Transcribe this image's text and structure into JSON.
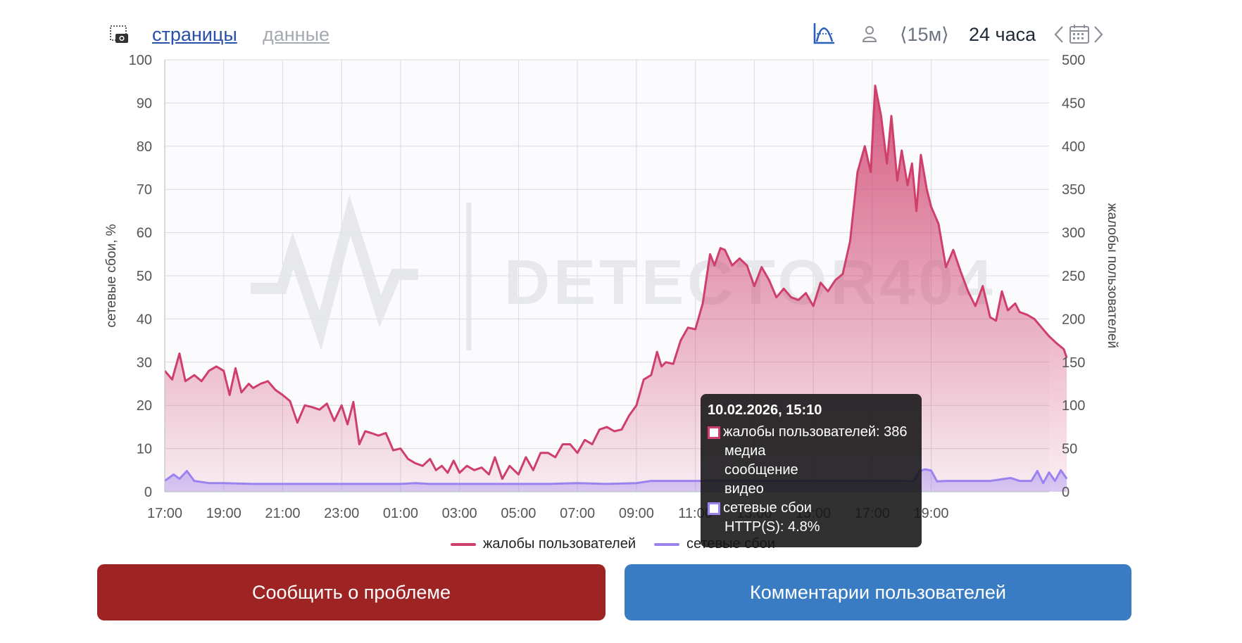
{
  "toolbar": {
    "tab_pages": "страницы",
    "tab_data": "данные",
    "interval_label": "⟨15м⟩",
    "range_label": "24 часа"
  },
  "chart_data": {
    "type": "area",
    "x_labels": [
      "17:00",
      "19:00",
      "21:00",
      "23:00",
      "01:00",
      "03:00",
      "05:00",
      "07:00",
      "09:00",
      "11:00",
      "13:00",
      "15:00",
      "17:00",
      "19:00"
    ],
    "y_left": {
      "label": "сетевые сбои, %",
      "range": [
        0,
        100
      ],
      "ticks": [
        0,
        10,
        20,
        30,
        40,
        50,
        60,
        70,
        80,
        90,
        100
      ]
    },
    "y_right": {
      "label": "жалобы пользователей",
      "range": [
        0,
        500
      ],
      "ticks": [
        0,
        50,
        100,
        150,
        200,
        250,
        300,
        350,
        400,
        450,
        500
      ]
    },
    "watermark": "DETECTOR404",
    "series": [
      {
        "name": "жалобы пользователей",
        "axis": "right",
        "color": "#cf3f6c",
        "points": [
          [
            17.0,
            140
          ],
          [
            17.25,
            130
          ],
          [
            17.5,
            160
          ],
          [
            17.7,
            128
          ],
          [
            18.0,
            135
          ],
          [
            18.25,
            128
          ],
          [
            18.5,
            140
          ],
          [
            18.75,
            145
          ],
          [
            19.0,
            140
          ],
          [
            19.2,
            112
          ],
          [
            19.4,
            143
          ],
          [
            19.6,
            115
          ],
          [
            19.85,
            125
          ],
          [
            20.0,
            120
          ],
          [
            20.25,
            125
          ],
          [
            20.5,
            128
          ],
          [
            20.75,
            118
          ],
          [
            21.0,
            112
          ],
          [
            21.25,
            105
          ],
          [
            21.5,
            80
          ],
          [
            21.75,
            100
          ],
          [
            22.0,
            98
          ],
          [
            22.25,
            95
          ],
          [
            22.5,
            102
          ],
          [
            22.75,
            82
          ],
          [
            23.0,
            100
          ],
          [
            23.2,
            78
          ],
          [
            23.4,
            104
          ],
          [
            23.6,
            55
          ],
          [
            23.8,
            70
          ],
          [
            24.0,
            68
          ],
          [
            24.25,
            65
          ],
          [
            24.5,
            68
          ],
          [
            24.75,
            48
          ],
          [
            25.0,
            50
          ],
          [
            25.25,
            38
          ],
          [
            25.5,
            33
          ],
          [
            25.75,
            30
          ],
          [
            26.0,
            38
          ],
          [
            26.2,
            25
          ],
          [
            26.4,
            30
          ],
          [
            26.6,
            22
          ],
          [
            26.8,
            36
          ],
          [
            27.0,
            22
          ],
          [
            27.25,
            30
          ],
          [
            27.5,
            25
          ],
          [
            27.75,
            28
          ],
          [
            28.0,
            20
          ],
          [
            28.2,
            40
          ],
          [
            28.45,
            15
          ],
          [
            28.7,
            30
          ],
          [
            29.0,
            20
          ],
          [
            29.25,
            40
          ],
          [
            29.5,
            25
          ],
          [
            29.75,
            45
          ],
          [
            30.0,
            45
          ],
          [
            30.25,
            40
          ],
          [
            30.5,
            55
          ],
          [
            30.75,
            55
          ],
          [
            31.0,
            45
          ],
          [
            31.25,
            60
          ],
          [
            31.5,
            55
          ],
          [
            31.75,
            72
          ],
          [
            32.0,
            75
          ],
          [
            32.25,
            70
          ],
          [
            32.5,
            72
          ],
          [
            32.75,
            88
          ],
          [
            33.0,
            100
          ],
          [
            33.25,
            130
          ],
          [
            33.5,
            135
          ],
          [
            33.7,
            162
          ],
          [
            33.85,
            145
          ],
          [
            34.0,
            150
          ],
          [
            34.25,
            148
          ],
          [
            34.5,
            175
          ],
          [
            34.75,
            190
          ],
          [
            35.0,
            188
          ],
          [
            35.25,
            218
          ],
          [
            35.5,
            275
          ],
          [
            35.65,
            262
          ],
          [
            35.85,
            282
          ],
          [
            36.0,
            280
          ],
          [
            36.25,
            262
          ],
          [
            36.5,
            270
          ],
          [
            36.75,
            262
          ],
          [
            37.0,
            238
          ],
          [
            37.25,
            260
          ],
          [
            37.5,
            245
          ],
          [
            37.75,
            225
          ],
          [
            38.0,
            235
          ],
          [
            38.25,
            225
          ],
          [
            38.5,
            222
          ],
          [
            38.75,
            230
          ],
          [
            39.0,
            215
          ],
          [
            39.25,
            242
          ],
          [
            39.5,
            232
          ],
          [
            39.75,
            245
          ],
          [
            40.0,
            252
          ],
          [
            40.25,
            290
          ],
          [
            40.5,
            370
          ],
          [
            40.75,
            400
          ],
          [
            40.95,
            370
          ],
          [
            41.1,
            470
          ],
          [
            41.3,
            435
          ],
          [
            41.5,
            380
          ],
          [
            41.65,
            435
          ],
          [
            41.85,
            360
          ],
          [
            42.0,
            395
          ],
          [
            42.2,
            355
          ],
          [
            42.35,
            380
          ],
          [
            42.5,
            325
          ],
          [
            42.65,
            390
          ],
          [
            42.85,
            350
          ],
          [
            43.0,
            330
          ],
          [
            43.25,
            310
          ],
          [
            43.5,
            260
          ],
          [
            43.75,
            280
          ],
          [
            44.0,
            255
          ],
          [
            44.25,
            232
          ],
          [
            44.5,
            215
          ],
          [
            44.75,
            238
          ],
          [
            45.0,
            202
          ],
          [
            45.2,
            198
          ],
          [
            45.4,
            232
          ],
          [
            45.6,
            210
          ],
          [
            45.85,
            218
          ],
          [
            46.0,
            208
          ],
          [
            46.25,
            205
          ],
          [
            46.5,
            200
          ],
          [
            46.75,
            190
          ],
          [
            47.0,
            180
          ],
          [
            47.25,
            172
          ],
          [
            47.5,
            165
          ],
          [
            47.6,
            155
          ]
        ]
      },
      {
        "name": "сетевые сбои",
        "axis": "left",
        "color": "#9b83ef",
        "points": [
          [
            17.0,
            2.5
          ],
          [
            17.3,
            4.0
          ],
          [
            17.5,
            3.0
          ],
          [
            17.75,
            4.8
          ],
          [
            18.0,
            2.5
          ],
          [
            18.5,
            2.0
          ],
          [
            19.0,
            2.0
          ],
          [
            20.0,
            1.8
          ],
          [
            21.0,
            1.8
          ],
          [
            22.0,
            1.8
          ],
          [
            23.0,
            1.8
          ],
          [
            24.0,
            1.8
          ],
          [
            25.0,
            1.8
          ],
          [
            25.5,
            2.0
          ],
          [
            26.0,
            1.8
          ],
          [
            27.0,
            1.8
          ],
          [
            28.0,
            1.8
          ],
          [
            29.0,
            1.8
          ],
          [
            30.0,
            1.8
          ],
          [
            31.0,
            2.0
          ],
          [
            32.0,
            1.8
          ],
          [
            33.0,
            2.0
          ],
          [
            33.5,
            2.5
          ],
          [
            34.0,
            2.5
          ],
          [
            35.0,
            2.5
          ],
          [
            36.0,
            2.6
          ],
          [
            37.0,
            2.5
          ],
          [
            38.0,
            2.5
          ],
          [
            39.0,
            2.5
          ],
          [
            40.0,
            2.5
          ],
          [
            41.0,
            2.5
          ],
          [
            42.0,
            2.5
          ],
          [
            42.4,
            2.4
          ],
          [
            42.6,
            4.8
          ],
          [
            42.8,
            5.2
          ],
          [
            43.0,
            4.9
          ],
          [
            43.2,
            2.4
          ],
          [
            43.5,
            2.5
          ],
          [
            44.0,
            2.5
          ],
          [
            45.0,
            2.5
          ],
          [
            45.7,
            3.2
          ],
          [
            46.0,
            2.5
          ],
          [
            46.4,
            2.5
          ],
          [
            46.6,
            4.8
          ],
          [
            46.8,
            2.0
          ],
          [
            47.0,
            4.5
          ],
          [
            47.2,
            2.5
          ],
          [
            47.4,
            5.0
          ],
          [
            47.6,
            3.0
          ]
        ]
      }
    ]
  },
  "tooltip": {
    "title": "10.02.2026, 15:10",
    "complaints_line": "жалобы пользователей: 386",
    "complaints_subs": [
      "медиа",
      "сообщение",
      "видео"
    ],
    "failures_line": "сетевые сбои",
    "failures_sub": "HTTP(S): 4.8%"
  },
  "buttons": {
    "report": "Сообщить о проблеме",
    "comments": "Комментарии пользователей"
  }
}
